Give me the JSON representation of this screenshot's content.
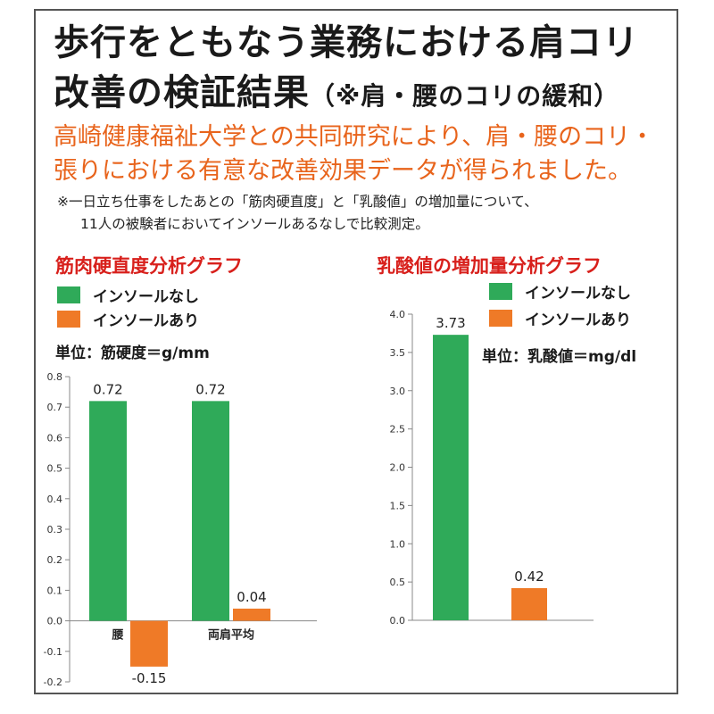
{
  "header": {
    "title_line1": "歩行をともなう業務における肩コリ",
    "title_line2": "改善の検証結果",
    "title_line2_sub": "（※肩・腰のコリの緩和）",
    "lead_line1": "高崎健康福祉大学との共同研究により、肩・腰のコリ・",
    "lead_line2": "張りにおける有意な改善効果データが得られました。",
    "note_line1": "※一日立ち仕事をしたあとの「筋肉硬直度」と「乳酸値」の増加量について、",
    "note_line2": "11人の被験者においてインソールあるなしで比較測定。"
  },
  "colors": {
    "series_without": "#2faa59",
    "series_with": "#ef7a27",
    "chart_title": "#d8201c",
    "lead_text": "#e8641c"
  },
  "chart_data": [
    {
      "type": "bar",
      "title": "筋肉硬直度分析グラフ",
      "unit": "単位：筋硬度＝g/mm",
      "categories": [
        "腰",
        "両肩平均"
      ],
      "series": [
        {
          "name": "インソールなし",
          "values": [
            0.72,
            0.72
          ]
        },
        {
          "name": "インソールあり",
          "values": [
            -0.15,
            0.04
          ]
        }
      ],
      "value_labels": [
        [
          "0.72",
          "0.72"
        ],
        [
          "-0.15",
          "0.04"
        ]
      ],
      "ylim": [
        -0.2,
        0.8
      ],
      "yticks": [
        -0.2,
        -0.1,
        0.0,
        0.1,
        0.2,
        0.3,
        0.4,
        0.5,
        0.6,
        0.7,
        0.8
      ],
      "ytick_labels": [
        "-0.2",
        "-0.1",
        "0.0",
        "0.1",
        "0.2",
        "0.3",
        "0.4",
        "0.5",
        "0.6",
        "0.7",
        "0.8"
      ],
      "legend_position": "top-left",
      "grid": false
    },
    {
      "type": "bar",
      "title": "乳酸値の増加量分析グラフ",
      "unit": "単位：乳酸値＝mg/dl",
      "categories": [
        "インソールなし",
        "インソールあり"
      ],
      "series": [
        {
          "name": "インソールなし",
          "values": [
            3.73,
            null
          ]
        },
        {
          "name": "インソールあり",
          "values": [
            null,
            0.42
          ]
        }
      ],
      "value_labels": [
        [
          "3.73",
          ""
        ],
        [
          "",
          "0.42"
        ]
      ],
      "ylim": [
        0,
        4.0
      ],
      "yticks": [
        0,
        0.5,
        1.0,
        1.5,
        2.0,
        2.5,
        3.0,
        3.5,
        4.0
      ],
      "ytick_labels": [
        "0.0",
        "0.5",
        "1.0",
        "1.5",
        "2.0",
        "2.5",
        "3.0",
        "3.5",
        "4.0"
      ],
      "legend_position": "top-right",
      "grid": false
    }
  ]
}
